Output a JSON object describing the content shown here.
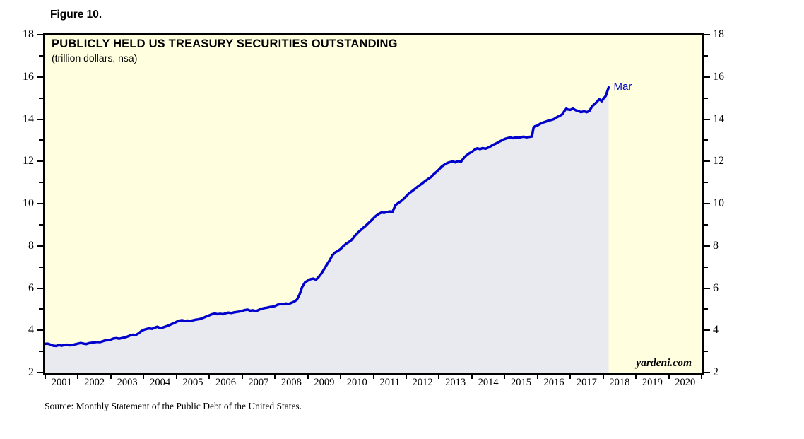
{
  "figure_label": "Figure 10.",
  "watermark": "yardeni.com",
  "source": "Source: Monthly Statement of the Public Debt of the United States.",
  "colors": {
    "line": "#0000CC",
    "area_fill": "#E9E9F0",
    "plot_background": "#FFFFDF",
    "border": "#000000",
    "annotation": "#0000CC"
  },
  "chart_data": {
    "type": "area",
    "title": "PUBLICLY HELD US TREASURY SECURITIES OUTSTANDING",
    "subtitle": "(trillion dollars, nsa)",
    "ylabel": "trillion dollars",
    "x_range": [
      2001,
      2021
    ],
    "y_range": [
      2,
      18
    ],
    "y_major_ticks": [
      2,
      4,
      6,
      8,
      10,
      12,
      14,
      16,
      18
    ],
    "y_minor_ticks": [
      3,
      5,
      7,
      9,
      11,
      13,
      15,
      17
    ],
    "x_year_labels": [
      "2001",
      "2002",
      "2003",
      "2004",
      "2005",
      "2006",
      "2007",
      "2008",
      "2009",
      "2010",
      "2011",
      "2012",
      "2013",
      "2014",
      "2015",
      "2016",
      "2017",
      "2018",
      "2019",
      "2020"
    ],
    "legend_position": "none",
    "grid": false,
    "last_point_label": "Mar",
    "last_point": {
      "year_decimal": 2018.17,
      "value": 15.5
    },
    "series": [
      {
        "name": "Publicly held US Treasury securities outstanding ($T)",
        "points": [
          [
            2001.0,
            3.36
          ],
          [
            2001.08,
            3.37
          ],
          [
            2001.17,
            3.32
          ],
          [
            2001.25,
            3.27
          ],
          [
            2001.33,
            3.26
          ],
          [
            2001.42,
            3.3
          ],
          [
            2001.5,
            3.27
          ],
          [
            2001.58,
            3.3
          ],
          [
            2001.67,
            3.32
          ],
          [
            2001.75,
            3.29
          ],
          [
            2001.83,
            3.31
          ],
          [
            2001.92,
            3.34
          ],
          [
            2002.0,
            3.37
          ],
          [
            2002.08,
            3.4
          ],
          [
            2002.17,
            3.37
          ],
          [
            2002.25,
            3.35
          ],
          [
            2002.33,
            3.39
          ],
          [
            2002.42,
            3.41
          ],
          [
            2002.5,
            3.43
          ],
          [
            2002.58,
            3.45
          ],
          [
            2002.67,
            3.44
          ],
          [
            2002.75,
            3.48
          ],
          [
            2002.83,
            3.52
          ],
          [
            2002.92,
            3.53
          ],
          [
            2003.0,
            3.56
          ],
          [
            2003.08,
            3.61
          ],
          [
            2003.17,
            3.63
          ],
          [
            2003.25,
            3.6
          ],
          [
            2003.33,
            3.63
          ],
          [
            2003.42,
            3.66
          ],
          [
            2003.5,
            3.7
          ],
          [
            2003.58,
            3.75
          ],
          [
            2003.67,
            3.79
          ],
          [
            2003.75,
            3.77
          ],
          [
            2003.83,
            3.84
          ],
          [
            2003.92,
            3.95
          ],
          [
            2004.0,
            4.02
          ],
          [
            2004.08,
            4.06
          ],
          [
            2004.17,
            4.09
          ],
          [
            2004.25,
            4.07
          ],
          [
            2004.33,
            4.12
          ],
          [
            2004.42,
            4.17
          ],
          [
            2004.5,
            4.1
          ],
          [
            2004.58,
            4.13
          ],
          [
            2004.67,
            4.18
          ],
          [
            2004.75,
            4.22
          ],
          [
            2004.83,
            4.28
          ],
          [
            2004.92,
            4.34
          ],
          [
            2005.0,
            4.4
          ],
          [
            2005.08,
            4.45
          ],
          [
            2005.17,
            4.48
          ],
          [
            2005.25,
            4.44
          ],
          [
            2005.33,
            4.46
          ],
          [
            2005.42,
            4.44
          ],
          [
            2005.5,
            4.47
          ],
          [
            2005.58,
            4.5
          ],
          [
            2005.67,
            4.52
          ],
          [
            2005.75,
            4.55
          ],
          [
            2005.83,
            4.6
          ],
          [
            2005.92,
            4.66
          ],
          [
            2006.0,
            4.71
          ],
          [
            2006.08,
            4.76
          ],
          [
            2006.17,
            4.79
          ],
          [
            2006.25,
            4.76
          ],
          [
            2006.33,
            4.78
          ],
          [
            2006.42,
            4.76
          ],
          [
            2006.5,
            4.81
          ],
          [
            2006.58,
            4.84
          ],
          [
            2006.67,
            4.82
          ],
          [
            2006.75,
            4.85
          ],
          [
            2006.83,
            4.87
          ],
          [
            2006.92,
            4.89
          ],
          [
            2007.0,
            4.92
          ],
          [
            2007.08,
            4.96
          ],
          [
            2007.17,
            4.98
          ],
          [
            2007.25,
            4.93
          ],
          [
            2007.33,
            4.95
          ],
          [
            2007.42,
            4.91
          ],
          [
            2007.5,
            4.96
          ],
          [
            2007.58,
            5.02
          ],
          [
            2007.67,
            5.05
          ],
          [
            2007.75,
            5.07
          ],
          [
            2007.83,
            5.1
          ],
          [
            2007.92,
            5.12
          ],
          [
            2008.0,
            5.15
          ],
          [
            2008.08,
            5.21
          ],
          [
            2008.17,
            5.25
          ],
          [
            2008.25,
            5.23
          ],
          [
            2008.33,
            5.27
          ],
          [
            2008.42,
            5.25
          ],
          [
            2008.5,
            5.3
          ],
          [
            2008.58,
            5.35
          ],
          [
            2008.67,
            5.45
          ],
          [
            2008.75,
            5.7
          ],
          [
            2008.83,
            6.05
          ],
          [
            2008.92,
            6.28
          ],
          [
            2009.0,
            6.35
          ],
          [
            2009.08,
            6.42
          ],
          [
            2009.17,
            6.45
          ],
          [
            2009.25,
            6.4
          ],
          [
            2009.33,
            6.52
          ],
          [
            2009.42,
            6.7
          ],
          [
            2009.5,
            6.9
          ],
          [
            2009.58,
            7.1
          ],
          [
            2009.67,
            7.32
          ],
          [
            2009.75,
            7.55
          ],
          [
            2009.83,
            7.68
          ],
          [
            2009.92,
            7.76
          ],
          [
            2010.0,
            7.85
          ],
          [
            2010.08,
            7.98
          ],
          [
            2010.17,
            8.1
          ],
          [
            2010.25,
            8.18
          ],
          [
            2010.33,
            8.27
          ],
          [
            2010.42,
            8.45
          ],
          [
            2010.5,
            8.58
          ],
          [
            2010.58,
            8.7
          ],
          [
            2010.67,
            8.83
          ],
          [
            2010.75,
            8.93
          ],
          [
            2010.83,
            9.05
          ],
          [
            2010.92,
            9.18
          ],
          [
            2011.0,
            9.3
          ],
          [
            2011.08,
            9.42
          ],
          [
            2011.17,
            9.52
          ],
          [
            2011.25,
            9.58
          ],
          [
            2011.33,
            9.56
          ],
          [
            2011.42,
            9.6
          ],
          [
            2011.5,
            9.63
          ],
          [
            2011.58,
            9.6
          ],
          [
            2011.67,
            9.92
          ],
          [
            2011.75,
            10.02
          ],
          [
            2011.83,
            10.1
          ],
          [
            2011.92,
            10.22
          ],
          [
            2012.0,
            10.35
          ],
          [
            2012.08,
            10.48
          ],
          [
            2012.17,
            10.58
          ],
          [
            2012.25,
            10.68
          ],
          [
            2012.33,
            10.78
          ],
          [
            2012.42,
            10.88
          ],
          [
            2012.5,
            10.97
          ],
          [
            2012.58,
            11.07
          ],
          [
            2012.67,
            11.17
          ],
          [
            2012.75,
            11.25
          ],
          [
            2012.83,
            11.38
          ],
          [
            2012.92,
            11.5
          ],
          [
            2013.0,
            11.62
          ],
          [
            2013.08,
            11.75
          ],
          [
            2013.17,
            11.85
          ],
          [
            2013.25,
            11.92
          ],
          [
            2013.33,
            11.96
          ],
          [
            2013.42,
            12.0
          ],
          [
            2013.5,
            11.95
          ],
          [
            2013.58,
            12.02
          ],
          [
            2013.67,
            11.98
          ],
          [
            2013.75,
            12.15
          ],
          [
            2013.83,
            12.28
          ],
          [
            2013.92,
            12.38
          ],
          [
            2014.0,
            12.45
          ],
          [
            2014.08,
            12.55
          ],
          [
            2014.17,
            12.62
          ],
          [
            2014.25,
            12.58
          ],
          [
            2014.33,
            12.63
          ],
          [
            2014.42,
            12.6
          ],
          [
            2014.5,
            12.65
          ],
          [
            2014.58,
            12.72
          ],
          [
            2014.67,
            12.8
          ],
          [
            2014.75,
            12.86
          ],
          [
            2014.83,
            12.93
          ],
          [
            2014.92,
            13.0
          ],
          [
            2015.0,
            13.06
          ],
          [
            2015.08,
            13.1
          ],
          [
            2015.17,
            13.13
          ],
          [
            2015.25,
            13.1
          ],
          [
            2015.33,
            13.13
          ],
          [
            2015.42,
            13.12
          ],
          [
            2015.5,
            13.15
          ],
          [
            2015.58,
            13.17
          ],
          [
            2015.67,
            13.14
          ],
          [
            2015.75,
            13.16
          ],
          [
            2015.83,
            13.18
          ],
          [
            2015.88,
            13.6
          ],
          [
            2015.92,
            13.66
          ],
          [
            2016.0,
            13.7
          ],
          [
            2016.08,
            13.78
          ],
          [
            2016.17,
            13.84
          ],
          [
            2016.25,
            13.88
          ],
          [
            2016.33,
            13.93
          ],
          [
            2016.42,
            13.96
          ],
          [
            2016.5,
            14.0
          ],
          [
            2016.58,
            14.08
          ],
          [
            2016.67,
            14.15
          ],
          [
            2016.75,
            14.22
          ],
          [
            2016.83,
            14.4
          ],
          [
            2016.88,
            14.5
          ],
          [
            2016.92,
            14.46
          ],
          [
            2017.0,
            14.44
          ],
          [
            2017.08,
            14.5
          ],
          [
            2017.17,
            14.42
          ],
          [
            2017.25,
            14.38
          ],
          [
            2017.33,
            14.33
          ],
          [
            2017.42,
            14.37
          ],
          [
            2017.5,
            14.33
          ],
          [
            2017.58,
            14.38
          ],
          [
            2017.67,
            14.62
          ],
          [
            2017.75,
            14.72
          ],
          [
            2017.83,
            14.85
          ],
          [
            2017.88,
            14.95
          ],
          [
            2017.92,
            14.9
          ],
          [
            2017.96,
            14.85
          ],
          [
            2018.0,
            14.95
          ],
          [
            2018.04,
            15.02
          ],
          [
            2018.08,
            15.1
          ],
          [
            2018.12,
            15.28
          ],
          [
            2018.17,
            15.5
          ]
        ]
      }
    ]
  }
}
